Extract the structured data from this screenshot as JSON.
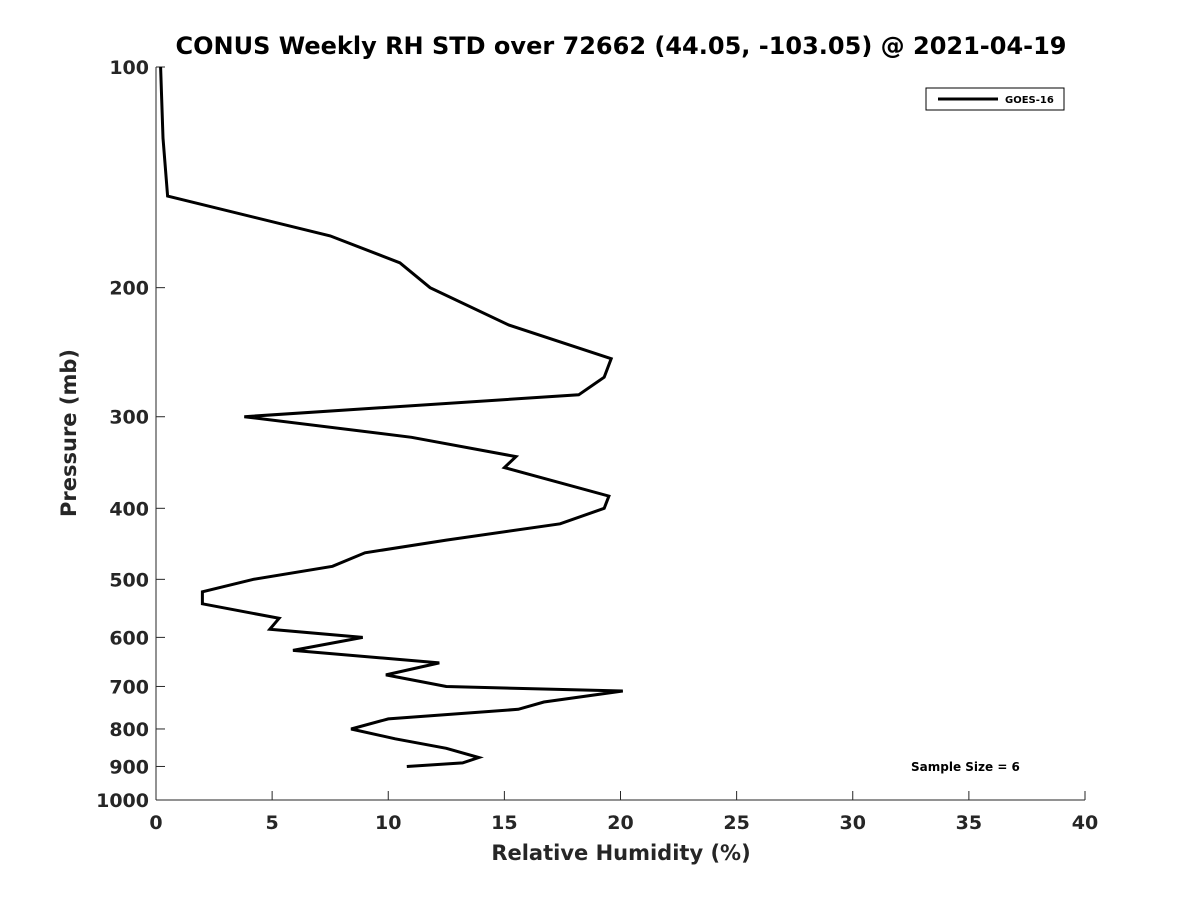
{
  "chart_data": {
    "type": "line",
    "title": "CONUS Weekly RH STD over 72662 (44.05, -103.05) @ 2021-04-19",
    "xlabel": "Relative Humidity (%)",
    "ylabel": "Pressure (mb)",
    "xlim": [
      0,
      40
    ],
    "ylim": [
      1000,
      100
    ],
    "yscale": "log",
    "y_reversed": true,
    "xticks": [
      "0",
      "5",
      "10",
      "15",
      "20",
      "25",
      "30",
      "35",
      "40"
    ],
    "yticks": [
      {
        "value": 100,
        "label": "100"
      },
      {
        "value": 200,
        "label": "200"
      },
      {
        "value": 300,
        "label": "300"
      },
      {
        "value": 400,
        "label": "400"
      },
      {
        "value": 500,
        "label": "500"
      },
      {
        "value": 600,
        "label": "600"
      },
      {
        "value": 700,
        "label": "700"
      },
      {
        "value": 800,
        "label": "800"
      },
      {
        "value": 900,
        "label": "900"
      },
      {
        "value": 1000,
        "label": "1000"
      }
    ],
    "grid": false,
    "legend_position": "top-right",
    "series": [
      {
        "name": "GOES-16",
        "color": "#000000",
        "points": [
          {
            "x": 0.2,
            "y": 100
          },
          {
            "x": 0.3,
            "y": 125
          },
          {
            "x": 0.5,
            "y": 150
          },
          {
            "x": 7.5,
            "y": 170
          },
          {
            "x": 10.5,
            "y": 185
          },
          {
            "x": 11.8,
            "y": 200
          },
          {
            "x": 15.2,
            "y": 225
          },
          {
            "x": 19.6,
            "y": 250
          },
          {
            "x": 19.3,
            "y": 265
          },
          {
            "x": 18.2,
            "y": 280
          },
          {
            "x": 3.8,
            "y": 300
          },
          {
            "x": 11.0,
            "y": 320
          },
          {
            "x": 15.5,
            "y": 340
          },
          {
            "x": 15.0,
            "y": 352
          },
          {
            "x": 19.5,
            "y": 385
          },
          {
            "x": 19.3,
            "y": 400
          },
          {
            "x": 17.4,
            "y": 420
          },
          {
            "x": 12.5,
            "y": 442
          },
          {
            "x": 9.0,
            "y": 460
          },
          {
            "x": 7.6,
            "y": 480
          },
          {
            "x": 4.2,
            "y": 500
          },
          {
            "x": 2.0,
            "y": 520
          },
          {
            "x": 2.0,
            "y": 540
          },
          {
            "x": 5.3,
            "y": 565
          },
          {
            "x": 4.9,
            "y": 585
          },
          {
            "x": 8.9,
            "y": 600
          },
          {
            "x": 5.9,
            "y": 625
          },
          {
            "x": 12.2,
            "y": 650
          },
          {
            "x": 9.9,
            "y": 675
          },
          {
            "x": 12.5,
            "y": 700
          },
          {
            "x": 20.1,
            "y": 710
          },
          {
            "x": 16.7,
            "y": 735
          },
          {
            "x": 15.6,
            "y": 752
          },
          {
            "x": 10.0,
            "y": 775
          },
          {
            "x": 8.4,
            "y": 800
          },
          {
            "x": 10.3,
            "y": 825
          },
          {
            "x": 12.5,
            "y": 850
          },
          {
            "x": 13.9,
            "y": 875
          },
          {
            "x": 13.2,
            "y": 890
          },
          {
            "x": 10.8,
            "y": 900
          }
        ]
      }
    ],
    "annotations": [
      "Sample Size = 6"
    ]
  }
}
